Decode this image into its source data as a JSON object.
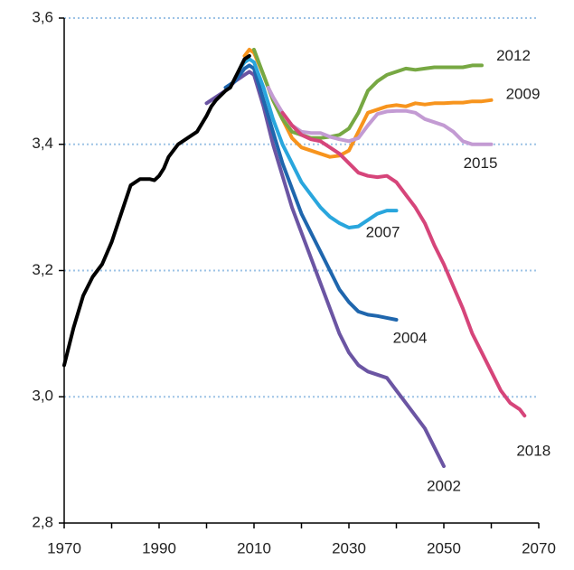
{
  "chart_data": {
    "type": "line",
    "xlim": [
      1970,
      2070
    ],
    "xticks": [
      1970,
      1990,
      2010,
      2030,
      2050,
      2070
    ],
    "xminorticks": [
      1980,
      2000,
      2020,
      2040,
      2060
    ],
    "ylim": [
      2.8,
      3.6
    ],
    "yticks": [
      {
        "value": 2.8,
        "label": "2,8"
      },
      {
        "value": 3.0,
        "label": "3,0"
      },
      {
        "value": 3.2,
        "label": "3,2"
      },
      {
        "value": 3.4,
        "label": "3,4"
      },
      {
        "value": 3.6,
        "label": "3,6"
      }
    ],
    "grid": true,
    "grid_color": "#9dc3e6",
    "history": {
      "color": "#000000",
      "x": [
        1970,
        1972,
        1974,
        1976,
        1978,
        1980,
        1982,
        1984,
        1986,
        1988,
        1989,
        1990,
        1991,
        1992,
        1994,
        1996,
        1998,
        2000,
        2001,
        2002,
        2004,
        2005,
        2006,
        2007,
        2008,
        2009
      ],
      "values": [
        3.05,
        3.11,
        3.16,
        3.19,
        3.21,
        3.245,
        3.29,
        3.335,
        3.345,
        3.345,
        3.343,
        3.35,
        3.362,
        3.38,
        3.4,
        3.41,
        3.42,
        3.445,
        3.46,
        3.47,
        3.485,
        3.49,
        3.505,
        3.52,
        3.535,
        3.54
      ]
    },
    "series": [
      {
        "name": "2002",
        "color": "#6b55a3",
        "x": [
          2000,
          2004,
          2006,
          2007,
          2008,
          2009,
          2010,
          2012,
          2014,
          2016,
          2018,
          2020,
          2022,
          2024,
          2026,
          2028,
          2030,
          2032,
          2034,
          2036,
          2038,
          2040,
          2042,
          2044,
          2046,
          2048,
          2050
        ],
        "values": [
          3.465,
          3.485,
          3.5,
          3.505,
          3.51,
          3.515,
          3.51,
          3.46,
          3.4,
          3.35,
          3.3,
          3.26,
          3.22,
          3.18,
          3.14,
          3.1,
          3.07,
          3.05,
          3.04,
          3.035,
          3.03,
          3.01,
          2.99,
          2.97,
          2.95,
          2.92,
          2.89
        ]
      },
      {
        "name": "2004",
        "color": "#1f66ad",
        "x": [
          2004,
          2006,
          2008,
          2009,
          2010,
          2012,
          2014,
          2016,
          2018,
          2020,
          2022,
          2024,
          2026,
          2028,
          2030,
          2032,
          2034,
          2036,
          2038,
          2040
        ],
        "values": [
          3.49,
          3.5,
          3.52,
          3.525,
          3.52,
          3.47,
          3.42,
          3.37,
          3.33,
          3.29,
          3.26,
          3.23,
          3.2,
          3.17,
          3.15,
          3.135,
          3.13,
          3.128,
          3.125,
          3.122
        ]
      },
      {
        "name": "2007",
        "color": "#29a6dd",
        "x": [
          2007,
          2008,
          2009,
          2010,
          2012,
          2014,
          2016,
          2018,
          2020,
          2022,
          2024,
          2026,
          2028,
          2030,
          2032,
          2034,
          2036,
          2038,
          2040
        ],
        "values": [
          3.52,
          3.53,
          3.535,
          3.53,
          3.49,
          3.44,
          3.4,
          3.37,
          3.34,
          3.32,
          3.3,
          3.285,
          3.275,
          3.268,
          3.27,
          3.28,
          3.29,
          3.295,
          3.295
        ]
      },
      {
        "name": "2009",
        "color": "#f7941d",
        "x": [
          2008,
          2009,
          2010,
          2012,
          2014,
          2016,
          2018,
          2020,
          2022,
          2024,
          2026,
          2028,
          2030,
          2032,
          2034,
          2036,
          2038,
          2040,
          2042,
          2044,
          2046,
          2048,
          2050,
          2052,
          2054,
          2056,
          2058,
          2060
        ],
        "values": [
          3.54,
          3.55,
          3.545,
          3.51,
          3.47,
          3.44,
          3.41,
          3.395,
          3.39,
          3.385,
          3.38,
          3.382,
          3.39,
          3.42,
          3.45,
          3.455,
          3.46,
          3.462,
          3.46,
          3.465,
          3.463,
          3.465,
          3.465,
          3.466,
          3.466,
          3.468,
          3.468,
          3.47
        ]
      },
      {
        "name": "2012",
        "color": "#77a843",
        "x": [
          2010,
          2012,
          2014,
          2016,
          2018,
          2020,
          2022,
          2024,
          2026,
          2028,
          2030,
          2032,
          2034,
          2036,
          2038,
          2040,
          2042,
          2044,
          2046,
          2048,
          2050,
          2052,
          2054,
          2056,
          2058
        ],
        "values": [
          3.55,
          3.51,
          3.47,
          3.44,
          3.42,
          3.415,
          3.41,
          3.41,
          3.412,
          3.415,
          3.425,
          3.45,
          3.485,
          3.5,
          3.51,
          3.515,
          3.52,
          3.518,
          3.52,
          3.522,
          3.522,
          3.522,
          3.522,
          3.525,
          3.525
        ]
      },
      {
        "name": "2015",
        "color": "#c39bd3",
        "x": [
          2013,
          2014,
          2016,
          2018,
          2020,
          2022,
          2024,
          2026,
          2028,
          2030,
          2032,
          2034,
          2036,
          2038,
          2040,
          2042,
          2044,
          2046,
          2048,
          2050,
          2052,
          2054,
          2056,
          2058,
          2060
        ],
        "values": [
          3.49,
          3.475,
          3.45,
          3.43,
          3.42,
          3.418,
          3.418,
          3.412,
          3.408,
          3.405,
          3.41,
          3.43,
          3.448,
          3.452,
          3.453,
          3.453,
          3.45,
          3.44,
          3.435,
          3.43,
          3.42,
          3.405,
          3.4,
          3.4,
          3.4
        ]
      },
      {
        "name": "2018",
        "color": "#d6457a",
        "x": [
          2016,
          2018,
          2020,
          2022,
          2024,
          2026,
          2028,
          2030,
          2032,
          2034,
          2036,
          2038,
          2040,
          2042,
          2044,
          2046,
          2048,
          2050,
          2052,
          2054,
          2056,
          2058,
          2060,
          2062,
          2064,
          2066,
          2067
        ],
        "values": [
          3.45,
          3.43,
          3.415,
          3.408,
          3.405,
          3.395,
          3.385,
          3.37,
          3.355,
          3.35,
          3.348,
          3.35,
          3.34,
          3.32,
          3.3,
          3.275,
          3.24,
          3.21,
          3.175,
          3.14,
          3.1,
          3.07,
          3.04,
          3.01,
          2.99,
          2.98,
          2.97
        ]
      }
    ]
  }
}
